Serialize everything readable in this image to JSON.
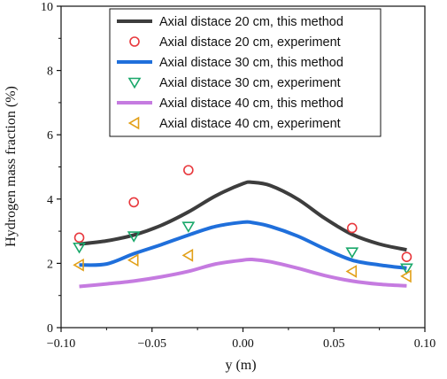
{
  "chart_data": {
    "type": "line",
    "xlabel": "y (m)",
    "ylabel": "Hydrogen mass fraction (%)",
    "xlim": [
      -0.1,
      0.1
    ],
    "ylim": [
      0,
      10
    ],
    "xticks": [
      -0.1,
      -0.05,
      0.0,
      0.05,
      0.1
    ],
    "xtick_labels": [
      "−0.10",
      "−0.05",
      "0.00",
      "0.05",
      "0.10"
    ],
    "yticks": [
      0,
      2,
      4,
      6,
      8,
      10
    ],
    "ytick_labels": [
      "0",
      "2",
      "4",
      "6",
      "8",
      "10"
    ],
    "legend_position": "top-center",
    "series": [
      {
        "name": "Axial distace 20 cm, this method",
        "kind": "line",
        "color": "#3d3d3d",
        "x": [
          -0.09,
          -0.075,
          -0.06,
          -0.045,
          -0.03,
          -0.015,
          0.0,
          0.005,
          0.015,
          0.03,
          0.045,
          0.06,
          0.075,
          0.09
        ],
        "y": [
          2.6,
          2.7,
          2.88,
          3.18,
          3.6,
          4.1,
          4.48,
          4.52,
          4.42,
          4.0,
          3.4,
          2.9,
          2.6,
          2.42
        ]
      },
      {
        "name": "Axial distace 20 cm, experiment",
        "kind": "marker",
        "marker": "circle",
        "color": "#e8383d",
        "x": [
          -0.09,
          -0.06,
          -0.03,
          0.06,
          0.09
        ],
        "y": [
          2.8,
          3.9,
          4.9,
          3.1,
          2.2
        ]
      },
      {
        "name": "Axial distace 30 cm, this method",
        "kind": "line",
        "color": "#1f6fdb",
        "x": [
          -0.09,
          -0.075,
          -0.06,
          -0.045,
          -0.03,
          -0.015,
          0.0,
          0.005,
          0.015,
          0.03,
          0.045,
          0.06,
          0.075,
          0.09
        ],
        "y": [
          1.95,
          1.98,
          2.3,
          2.58,
          2.88,
          3.15,
          3.28,
          3.27,
          3.15,
          2.85,
          2.45,
          2.1,
          1.95,
          1.85
        ]
      },
      {
        "name": "Axial distace 30 cm, experiment",
        "kind": "marker",
        "marker": "triangle-down",
        "color": "#1aa86b",
        "x": [
          -0.09,
          -0.06,
          -0.03,
          0.06,
          0.09
        ],
        "y": [
          2.5,
          2.85,
          3.15,
          2.35,
          1.85
        ]
      },
      {
        "name": "Axial distace 40 cm, this method",
        "kind": "line",
        "color": "#c57be0",
        "x": [
          -0.09,
          -0.075,
          -0.06,
          -0.045,
          -0.03,
          -0.015,
          0.0,
          0.005,
          0.015,
          0.03,
          0.045,
          0.06,
          0.075,
          0.09
        ],
        "y": [
          1.28,
          1.36,
          1.45,
          1.58,
          1.75,
          1.98,
          2.1,
          2.12,
          2.05,
          1.85,
          1.62,
          1.45,
          1.35,
          1.3
        ]
      },
      {
        "name": "Axial distace 40 cm, experiment",
        "kind": "marker",
        "marker": "triangle-left",
        "color": "#e2a019",
        "x": [
          -0.09,
          -0.06,
          -0.03,
          0.06,
          0.09
        ],
        "y": [
          1.95,
          2.1,
          2.25,
          1.75,
          1.6
        ]
      }
    ]
  }
}
